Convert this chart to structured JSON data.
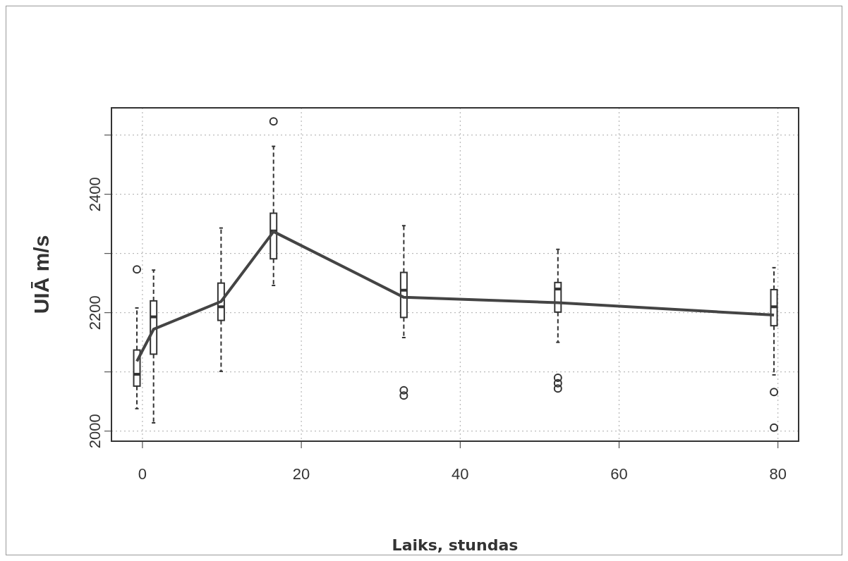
{
  "chart_data": {
    "type": "box",
    "xlabel": "Laiks, stundas",
    "ylabel": "UIĀ m/s",
    "xlim": [
      -3.9,
      82.6
    ],
    "ylim": [
      1983,
      2546
    ],
    "xticks": [
      0,
      20,
      40,
      60,
      80
    ],
    "yticks": [
      2000,
      {
        "value": 2100,
        "label": null
      },
      2200,
      {
        "value": 2300,
        "label": null
      },
      2400,
      {
        "value": 2500,
        "label": null
      }
    ],
    "grid": true,
    "series": [
      {
        "color": "#333333",
        "x": [
          -0.7,
          1.4,
          9.9,
          16.5,
          32.9,
          52.3,
          79.5
        ],
        "boxes": [
          {
            "low": 2038,
            "q1": 2076,
            "median": 2096,
            "q3": 2137,
            "high": 2208,
            "outliers": [
              2273
            ]
          },
          {
            "low": 2014,
            "q1": 2130,
            "median": 2193,
            "q3": 2220,
            "high": 2272
          },
          {
            "low": 2101,
            "q1": 2187,
            "median": 2210,
            "q3": 2250,
            "high": 2343
          },
          {
            "low": 2246,
            "q1": 2291,
            "median": 2338,
            "q3": 2368,
            "high": 2481,
            "outliers": [
              2523
            ]
          },
          {
            "low": 2158,
            "q1": 2192,
            "median": 2238,
            "q3": 2268,
            "high": 2347,
            "outliers": [
              2069,
              2060
            ]
          },
          {
            "low": 2150,
            "q1": 2201,
            "median": 2240,
            "q3": 2251,
            "high": 2307,
            "outliers": [
              2090,
              2081,
              2072
            ]
          },
          {
            "low": 2095,
            "q1": 2178,
            "median": 2210,
            "q3": 2239,
            "high": 2276,
            "outliers": [
              2066,
              2006
            ]
          }
        ]
      },
      {
        "type": "line",
        "color": "#444444",
        "marker": "none",
        "line_style": "solid",
        "x": [
          -0.7,
          1.4,
          9.9,
          16.5,
          32.9,
          52.3,
          79.5
        ],
        "values": [
          2118,
          2172,
          2219,
          2337,
          2226,
          2217,
          2196
        ]
      }
    ]
  }
}
